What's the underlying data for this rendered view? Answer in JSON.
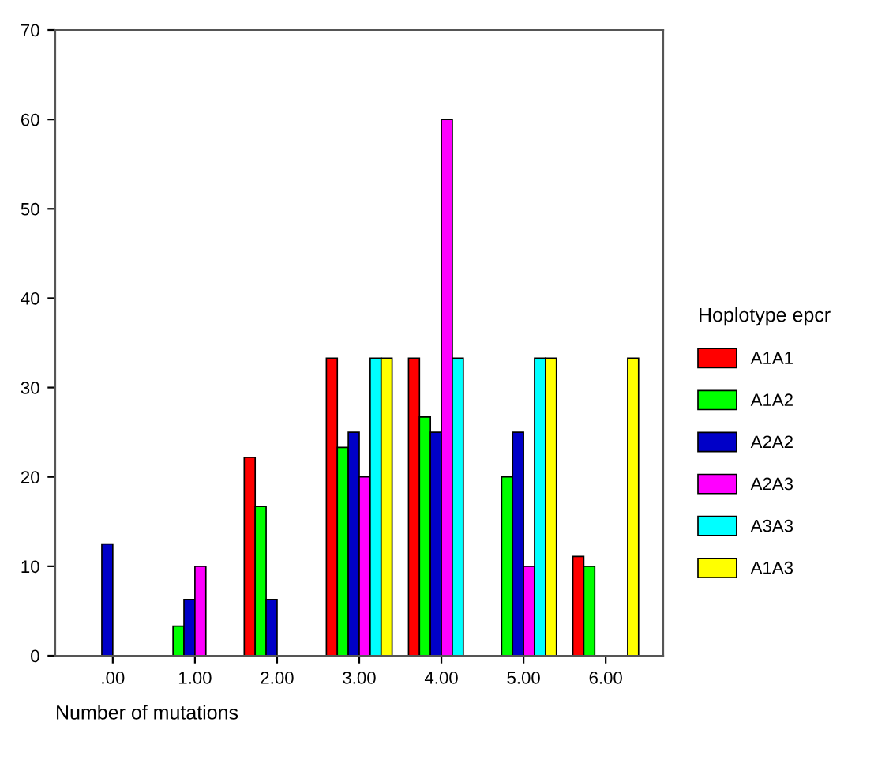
{
  "chart_data": {
    "type": "bar",
    "xlabel": "Number of mutations",
    "legend_title": "Hoplotype epcr",
    "legend": "right",
    "grid": false,
    "categories": [
      ".00",
      "1.00",
      "2.00",
      "3.00",
      "4.00",
      "5.00",
      "6.00"
    ],
    "ylim": [
      0,
      70
    ],
    "yticks": [
      0,
      10,
      20,
      30,
      40,
      50,
      60,
      70
    ],
    "series": [
      {
        "name": "A1A1",
        "color": "#ff0000",
        "values": [
          null,
          null,
          22.2,
          33.3,
          33.3,
          null,
          11.1
        ]
      },
      {
        "name": "A1A2",
        "color": "#00ff00",
        "values": [
          null,
          3.3,
          16.7,
          23.3,
          26.7,
          20,
          10
        ]
      },
      {
        "name": "A2A2",
        "color": "#0000c8",
        "values": [
          12.5,
          6.3,
          6.3,
          25,
          25,
          25,
          null
        ]
      },
      {
        "name": "A2A3",
        "color": "#ff00ff",
        "values": [
          null,
          10,
          null,
          20,
          60,
          10,
          null
        ]
      },
      {
        "name": "A3A3",
        "color": "#00ffff",
        "values": [
          null,
          null,
          null,
          33.3,
          33.3,
          33.3,
          null
        ]
      },
      {
        "name": "A1A3",
        "color": "#ffff00",
        "values": [
          null,
          null,
          null,
          33.3,
          null,
          33.3,
          33.3
        ]
      }
    ]
  }
}
